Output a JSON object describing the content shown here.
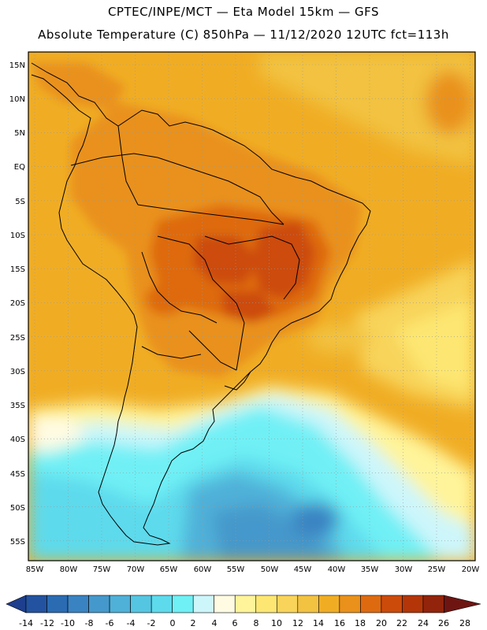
{
  "header": {
    "line1": "CPTEC/INPE/MCT —  Eta Model 15km — GFS",
    "line2": "Absolute Temperature (C) 850hPa — 11/12/2020 12UTC fct=113h"
  },
  "axes": {
    "lat_labels": [
      "15N",
      "10N",
      "5N",
      "EQ",
      "5S",
      "10S",
      "15S",
      "20S",
      "25S",
      "30S",
      "35S",
      "40S",
      "45S",
      "50S",
      "55S"
    ],
    "lon_labels": [
      "85W",
      "80W",
      "75W",
      "70W",
      "65W",
      "60W",
      "55W",
      "50W",
      "45W",
      "40W",
      "35W",
      "30W",
      "25W",
      "20W"
    ]
  },
  "colorbar": {
    "labels": [
      "-14",
      "-12",
      "-10",
      "-8",
      "-6",
      "-4",
      "-2",
      "0",
      "2",
      "4",
      "6",
      "8",
      "10",
      "12",
      "14",
      "16",
      "18",
      "20",
      "22",
      "24",
      "26",
      "28"
    ],
    "colors": [
      "#1e3f8e",
      "#2353a0",
      "#2b6bb2",
      "#3a83c2",
      "#4598cb",
      "#4fb0d8",
      "#55c6e2",
      "#5ddaec",
      "#6ff0f5",
      "#cdf6fb",
      "#fffbe3",
      "#fff49a",
      "#fde772",
      "#f8d45a",
      "#f2c241",
      "#f0ad24",
      "#e9911a",
      "#de6a10",
      "#cc4b0b",
      "#b43608",
      "#92240b",
      "#6e1512"
    ]
  }
}
